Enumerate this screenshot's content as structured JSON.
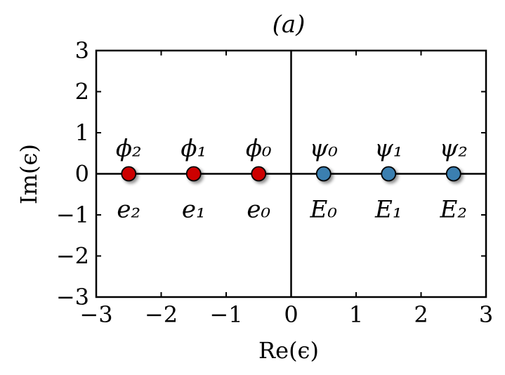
{
  "chart_data": {
    "type": "scatter",
    "title": "(a)",
    "xlabel": "Re(ϵ)",
    "ylabel": "Im(ϵ)",
    "xlim": [
      -3,
      3
    ],
    "ylim": [
      -3,
      3
    ],
    "xticks": [
      "−3",
      "−2",
      "−1",
      "0",
      "1",
      "2",
      "3"
    ],
    "yticks": [
      "3",
      "2",
      "1",
      "0",
      "−1",
      "−2",
      "−3"
    ],
    "xtick_values": [
      -3,
      -2,
      -1,
      0,
      1,
      2,
      3
    ],
    "ytick_values": [
      3,
      2,
      1,
      0,
      -1,
      -2,
      -3
    ],
    "grid": false,
    "zero_lines": true,
    "series": [
      {
        "color": "#cc0000",
        "points": [
          {
            "x": -2.5,
            "y": 0,
            "label_above": "ϕ₂",
            "label_below": "e₂"
          },
          {
            "x": -1.5,
            "y": 0,
            "label_above": "ϕ₁",
            "label_below": "e₁"
          },
          {
            "x": -0.5,
            "y": 0,
            "label_above": "ϕ₀",
            "label_below": "e₀"
          }
        ]
      },
      {
        "color": "#3a7fb0",
        "points": [
          {
            "x": 0.5,
            "y": 0,
            "label_above": "ψ₀",
            "label_below": "E₀"
          },
          {
            "x": 1.5,
            "y": 0,
            "label_above": "ψ₁",
            "label_below": "E₁"
          },
          {
            "x": 2.5,
            "y": 0,
            "label_above": "ψ₂",
            "label_below": "E₂"
          }
        ]
      }
    ]
  }
}
